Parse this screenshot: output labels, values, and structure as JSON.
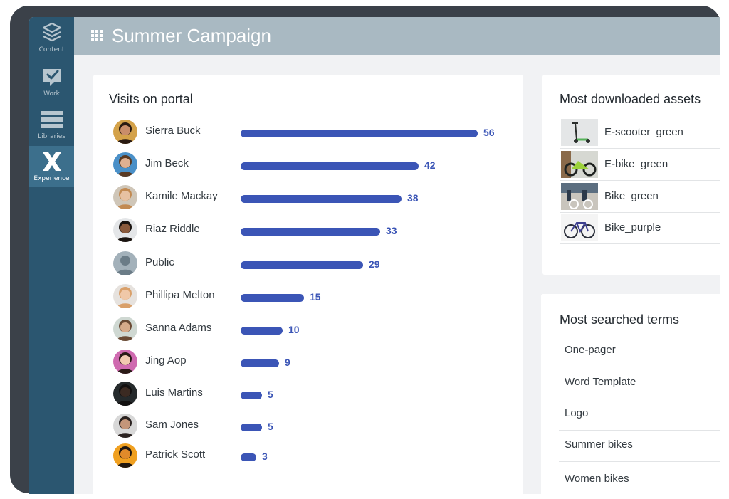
{
  "app": {
    "title": "Summer Campaign",
    "nav": [
      {
        "label": "Content",
        "icon": "layers-icon",
        "active": false
      },
      {
        "label": "Work",
        "icon": "check-icon",
        "active": false
      },
      {
        "label": "Libraries",
        "icon": "stack-icon",
        "active": false
      },
      {
        "label": "Experience",
        "icon": "x-logo-icon",
        "active": true
      }
    ]
  },
  "visits": {
    "title": "Visits on portal",
    "accent": "#3b55b6",
    "max": 56,
    "people": [
      {
        "name": "Sierra Buck",
        "value": 56
      },
      {
        "name": "Jim Beck",
        "value": 42
      },
      {
        "name": "Kamile Mackay",
        "value": 38
      },
      {
        "name": "Riaz Riddle",
        "value": 33
      },
      {
        "name": "Public",
        "value": 29
      },
      {
        "name": "Phillipa Melton",
        "value": 15
      },
      {
        "name": "Sanna Adams",
        "value": 10
      },
      {
        "name": "Jing Aop",
        "value": 9
      },
      {
        "name": "Luis Martins",
        "value": 5
      },
      {
        "name": "Sam Jones",
        "value": 5
      },
      {
        "name": "Patrick Scott",
        "value": 3
      }
    ]
  },
  "assets": {
    "title": "Most downloaded assets",
    "items": [
      "E-scooter_green",
      "E-bike_green",
      "Bike_green",
      "Bike_purple"
    ]
  },
  "terms": {
    "title": "Most searched terms",
    "items": [
      "One-pager",
      "Word Template",
      "Logo",
      "Summer bikes",
      "Women bikes"
    ]
  }
}
